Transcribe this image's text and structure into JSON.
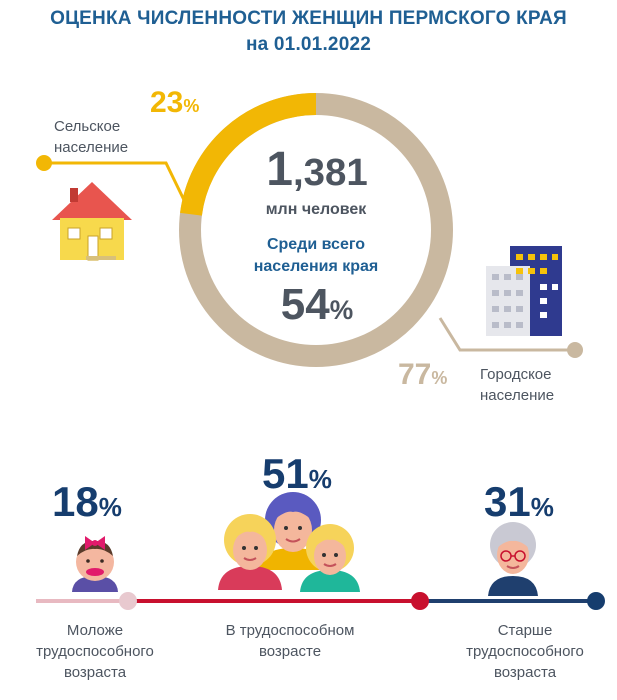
{
  "header": {
    "title_line1": "ОЦЕНКА ЧИСЛЕННОСТИ ЖЕНЩИН ПЕРМСКОГО КРАЯ",
    "title_line2": "на 01.01.2022"
  },
  "donut": {
    "total_int": "1",
    "total_frac": ",381",
    "total_unit": "млн человек",
    "caption_line1": "Среди всего",
    "caption_line2": "населения края",
    "share_value": "54",
    "percent_sign": "%"
  },
  "rural": {
    "value": "23",
    "percent": 23,
    "percent_sign": "%",
    "label_line1": "Сельское",
    "label_line2": "население",
    "color": "#f2b705"
  },
  "urban": {
    "value": "77",
    "percent": 77,
    "percent_sign": "%",
    "label_line1": "Городское",
    "label_line2": "население",
    "color": "#c9b8a0"
  },
  "age_groups": [
    {
      "value": "18",
      "percent_sign": "%",
      "label_line1": "Моложе",
      "label_line2": "трудоспособного",
      "label_line3": "возраста"
    },
    {
      "value": "51",
      "percent_sign": "%",
      "label_line1": "В трудоспособном",
      "label_line2": "возрасте"
    },
    {
      "value": "31",
      "percent_sign": "%",
      "label_line1": "Старше",
      "label_line2": "трудоспособного",
      "label_line3": "возраста"
    }
  ],
  "colors": {
    "title_blue": "#1f5f93",
    "dark_navy": "#163d6e",
    "timeline_red": "#c8102e",
    "timeline_pink": "#e8b9c1",
    "timeline_navy": "#1f3f6e"
  }
}
